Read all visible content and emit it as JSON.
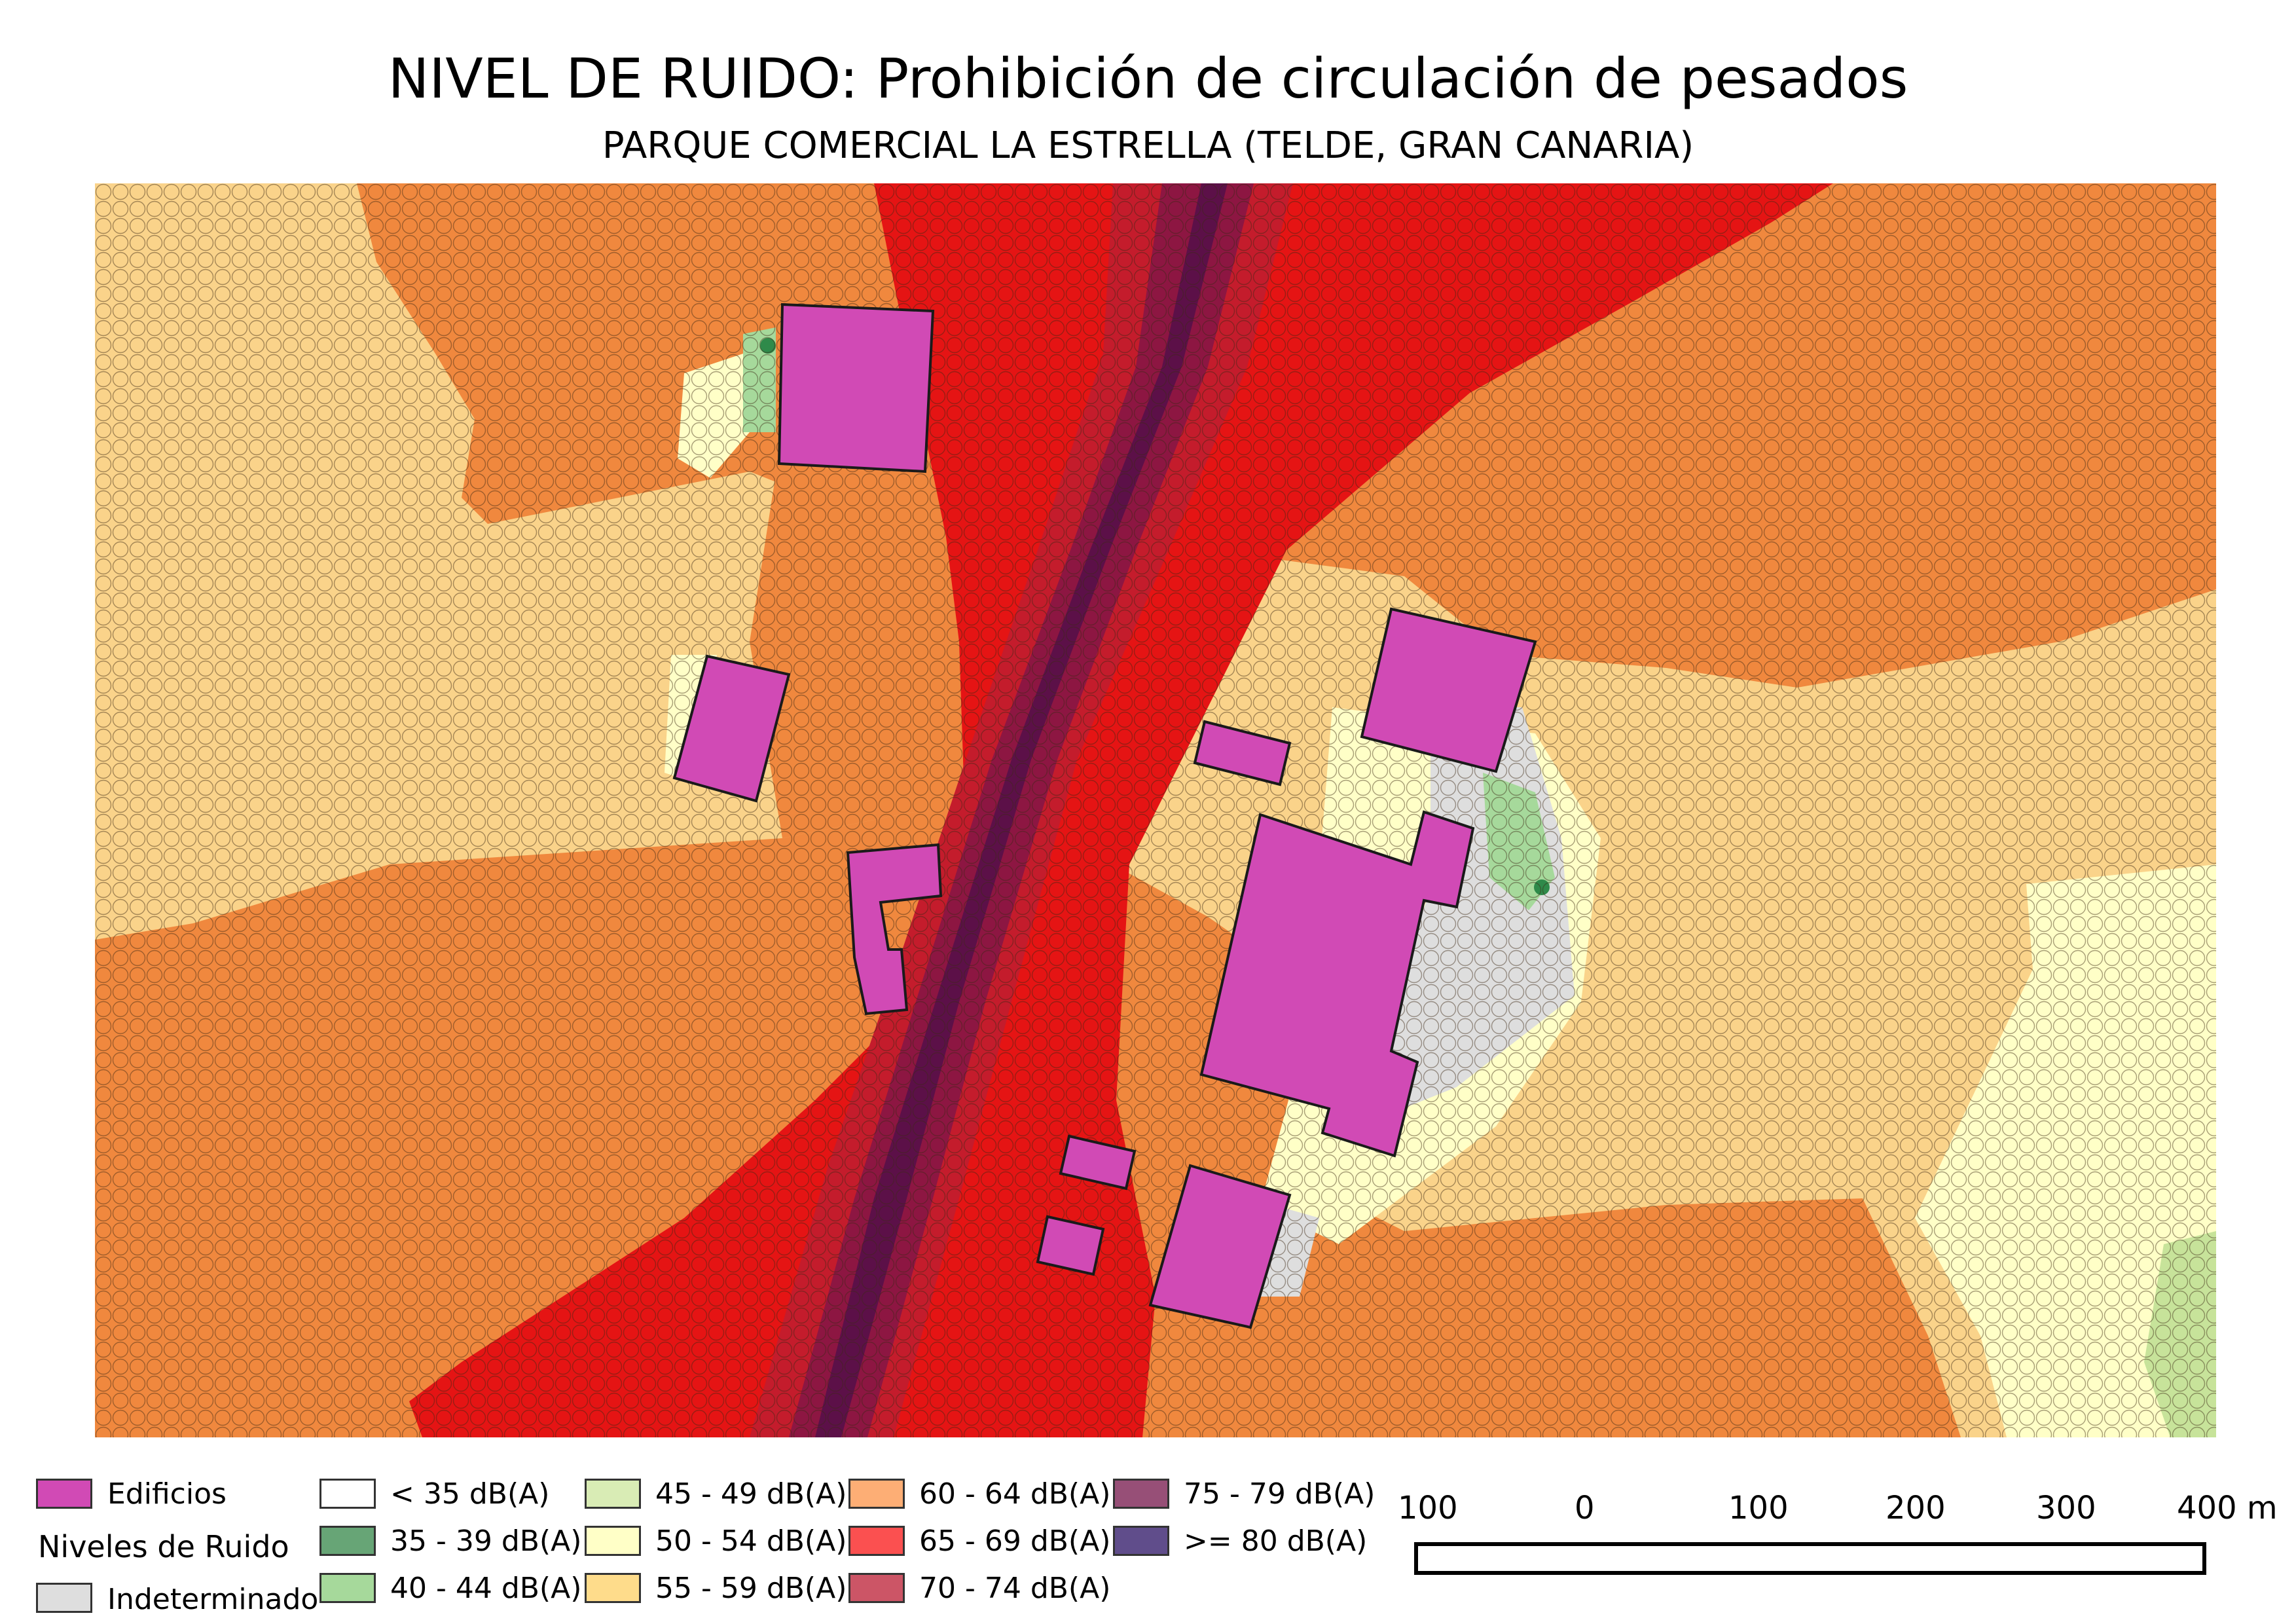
{
  "title": "NIVEL DE RUIDO: Prohibición de circulación de pesados",
  "subtitle": "PARQUE COMERCIAL LA ESTRELLA (TELDE, GRAN CANARIA)",
  "legend": {
    "buildings_label": "Edificios",
    "buildings_color": "#d14ab5",
    "noise_heading": "Niveles de Ruido",
    "indeterminate_label": "Indeterminado",
    "indeterminate_color": "#dedede",
    "classes": [
      {
        "label": "< 35 dB(A)",
        "color": "#ffffff"
      },
      {
        "label": "35 - 39 dB(A)",
        "color": "#67a576"
      },
      {
        "label": "40 - 44 dB(A)",
        "color": "#a6d99b"
      },
      {
        "label": "45 - 49 dB(A)",
        "color": "#d9ecb5"
      },
      {
        "label": "50 - 54 dB(A)",
        "color": "#ffffc7"
      },
      {
        "label": "55 - 59 dB(A)",
        "color": "#fedc8b"
      },
      {
        "label": "60 - 64 dB(A)",
        "color": "#fdae75"
      },
      {
        "label": "65 - 69 dB(A)",
        "color": "#fb5050"
      },
      {
        "label": "70 - 74 dB(A)",
        "color": "#cc5566"
      },
      {
        "label": "75 - 79 dB(A)",
        "color": "#974f77"
      },
      {
        "label": ">= 80 dB(A)",
        "color": "#604d8b"
      }
    ]
  },
  "scale_bar": {
    "labels": [
      "100",
      "0",
      "100",
      "200",
      "300",
      "400 m"
    ]
  }
}
